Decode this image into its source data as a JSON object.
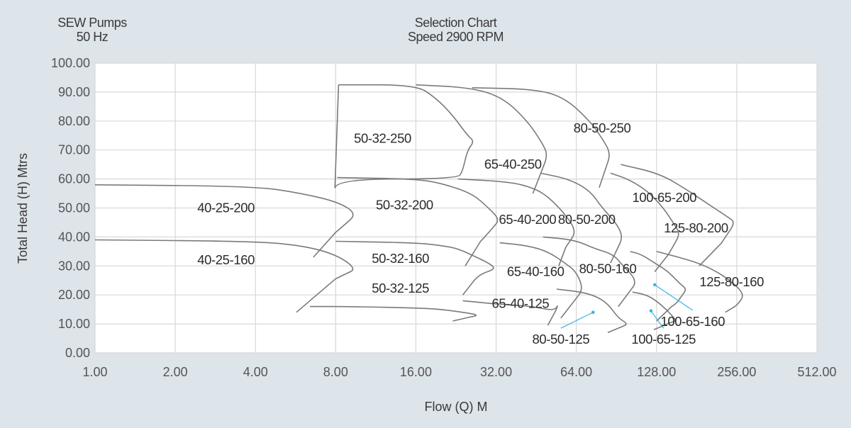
{
  "header": {
    "left_line1": "SEW Pumps",
    "left_line2": "50 Hz",
    "center_line1": "Selection Chart",
    "center_line2": "Speed 2900 RPM"
  },
  "chart_data": {
    "type": "line",
    "title": "Selection Chart",
    "subtitle": "Speed 2900 RPM",
    "xlabel": "Flow (Q)  M",
    "ylabel": "Total Head (H) Mtrs",
    "x_scale": "log2",
    "xlim": [
      1,
      512
    ],
    "ylim": [
      0,
      100
    ],
    "x_ticks": [
      "1.00",
      "2.00",
      "4.00",
      "8.00",
      "16.00",
      "32.00",
      "64.00",
      "128.00",
      "256.00",
      "512.00"
    ],
    "y_ticks": [
      "0.00",
      "10.00",
      "20.00",
      "30.00",
      "40.00",
      "50.00",
      "60.00",
      "70.00",
      "80.00",
      "90.00",
      "100.00"
    ],
    "grid": true,
    "colors": {
      "curve": "#7a7a7a",
      "grid": "#d8d8d8",
      "pointer": "#39b4e4",
      "plot_bg": "#ffffff"
    },
    "regions": [
      {
        "name": "50-32-250",
        "label_at": [
          12,
          74
        ],
        "outline": [
          [
            8.2,
            92.5
          ],
          [
            16,
            92.5
          ],
          [
            19,
            88
          ],
          [
            22,
            82
          ],
          [
            25,
            75
          ],
          [
            26.5,
            73
          ],
          [
            25,
            70
          ],
          [
            24,
            63
          ],
          [
            23,
            60
          ],
          [
            8.1,
            60
          ],
          [
            7.8,
            54
          ],
          [
            8.2,
            92.5
          ]
        ]
      },
      {
        "name": "65-40-250",
        "label_at": [
          37,
          65
        ],
        "outline": [
          [
            16,
            92.5
          ],
          [
            26,
            91.5
          ],
          [
            34,
            88
          ],
          [
            42,
            80
          ],
          [
            48,
            72
          ],
          [
            50,
            68
          ],
          [
            47,
            62
          ],
          [
            44,
            55
          ]
        ]
      },
      {
        "name": "80-50-250",
        "label_at": [
          80,
          77.5
        ],
        "outline": [
          [
            26,
            91.5
          ],
          [
            45,
            91
          ],
          [
            58,
            88
          ],
          [
            72,
            80
          ],
          [
            80,
            74
          ],
          [
            86,
            69
          ],
          [
            83,
            64
          ],
          [
            78,
            57
          ]
        ]
      },
      {
        "name": "40-25-200",
        "label_at": [
          3.1,
          50
        ],
        "outline": [
          [
            1,
            58
          ],
          [
            4,
            57.5
          ],
          [
            6,
            55
          ],
          [
            8.2,
            52
          ],
          [
            9.6,
            48
          ],
          [
            8.6,
            44
          ],
          [
            7.4,
            39
          ],
          [
            6.6,
            33
          ]
        ]
      },
      {
        "name": "50-32-200",
        "label_at": [
          14.5,
          51
        ],
        "outline": [
          [
            8.1,
            60.5
          ],
          [
            16,
            60
          ],
          [
            20,
            58.5
          ],
          [
            26,
            55
          ],
          [
            30,
            50
          ],
          [
            33,
            46
          ],
          [
            31,
            43
          ],
          [
            29,
            40
          ],
          [
            27,
            37
          ],
          [
            24.5,
            30
          ]
        ]
      },
      {
        "name": "65-40-200",
        "label_at": [
          42,
          46
        ],
        "outline": [
          [
            23,
            60
          ],
          [
            36,
            59
          ],
          [
            44,
            57
          ],
          [
            50,
            54
          ],
          [
            58,
            48
          ],
          [
            64,
            42
          ],
          [
            60,
            38
          ],
          [
            57,
            35
          ],
          [
            55,
            30
          ]
        ]
      },
      {
        "name": "80-50-200",
        "label_at": [
          70,
          46
        ],
        "outline": [
          [
            47,
            62
          ],
          [
            60,
            60
          ],
          [
            72,
            56
          ],
          [
            80,
            50
          ],
          [
            90,
            45
          ],
          [
            96,
            40
          ],
          [
            90,
            35
          ],
          [
            86,
            31
          ]
        ]
      },
      {
        "name": "100-65-200",
        "label_at": [
          137,
          53.5
        ],
        "outline": [
          [
            86,
            62
          ],
          [
            100,
            60
          ],
          [
            118,
            56
          ],
          [
            136,
            50
          ],
          [
            150,
            44
          ],
          [
            157,
            41
          ],
          [
            146,
            36
          ],
          [
            138,
            32
          ],
          [
            126,
            28
          ]
        ]
      },
      {
        "name": "125-80-200",
        "label_at": [
          180,
          43
        ],
        "outline": [
          [
            94,
            65
          ],
          [
            130,
            62
          ],
          [
            162,
            57
          ],
          [
            195,
            52
          ],
          [
            236,
            47
          ],
          [
            253,
            45
          ],
          [
            232,
            40
          ],
          [
            218,
            36
          ],
          [
            185,
            30
          ]
        ]
      },
      {
        "name": "40-25-160",
        "label_at": [
          3.1,
          32
        ],
        "outline": [
          [
            1,
            39
          ],
          [
            4,
            38.5
          ],
          [
            6,
            37
          ],
          [
            8,
            34
          ],
          [
            9.6,
            29
          ],
          [
            8.6,
            27
          ],
          [
            7.4,
            24
          ],
          [
            5.7,
            14
          ]
        ]
      },
      {
        "name": "50-32-160",
        "label_at": [
          14,
          32.5
        ],
        "outline": [
          [
            8,
            38.5
          ],
          [
            16,
            38
          ],
          [
            20,
            37
          ],
          [
            23,
            36
          ],
          [
            27,
            33
          ],
          [
            30,
            31
          ],
          [
            32,
            29
          ],
          [
            27.5,
            27
          ],
          [
            25,
            22
          ],
          [
            24,
            20
          ]
        ]
      },
      {
        "name": "65-40-160",
        "label_at": [
          45,
          28
        ],
        "outline": [
          [
            33,
            38
          ],
          [
            42,
            37
          ],
          [
            50,
            35
          ],
          [
            58,
            31
          ],
          [
            64,
            28
          ],
          [
            68,
            22
          ],
          [
            63,
            18
          ],
          [
            56,
            12
          ]
        ]
      },
      {
        "name": "80-50-160",
        "label_at": [
          84,
          29
        ],
        "outline": [
          [
            48,
            40
          ],
          [
            63,
            39
          ],
          [
            75,
            36
          ],
          [
            88,
            34
          ],
          [
            96,
            30
          ],
          [
            108,
            25
          ],
          [
            102,
            21
          ],
          [
            92,
            16
          ]
        ]
      },
      {
        "name": "100-65-160",
        "label_at": [
          175,
          10.8
        ],
        "pointer_to": [
          126,
          23.5
        ],
        "outline": [
          [
            102,
            35
          ],
          [
            112,
            34
          ],
          [
            126,
            31
          ],
          [
            142,
            28
          ],
          [
            156,
            24
          ],
          [
            166,
            22
          ],
          [
            160,
            20
          ],
          [
            152,
            17
          ],
          [
            140,
            15
          ],
          [
            128,
            11
          ]
        ]
      },
      {
        "name": "125-80-160",
        "label_at": [
          245,
          24.5
        ],
        "outline": [
          [
            128,
            35
          ],
          [
            155,
            33
          ],
          [
            184,
            31
          ],
          [
            216,
            28
          ],
          [
            250,
            24
          ],
          [
            273,
            20
          ],
          [
            260,
            17
          ],
          [
            244,
            15
          ],
          [
            232,
            14
          ]
        ]
      },
      {
        "name": "50-32-125",
        "label_at": [
          14,
          22.3
        ],
        "outline": [
          [
            6.4,
            16
          ],
          [
            9,
            16
          ],
          [
            16,
            15.5
          ],
          [
            20,
            15
          ],
          [
            24,
            14
          ],
          [
            28,
            13
          ],
          [
            24,
            12
          ],
          [
            22,
            11
          ]
        ]
      },
      {
        "name": "65-40-125",
        "label_at": [
          39.5,
          17
        ],
        "outline": [
          [
            24,
            18
          ],
          [
            31,
            17
          ],
          [
            37,
            16.5
          ],
          [
            44,
            16
          ],
          [
            53,
            14.5
          ],
          [
            55,
            17
          ],
          [
            52,
            12
          ],
          [
            50,
            9.5
          ]
        ]
      },
      {
        "name": "80-50-125",
        "label_at": [
          56,
          4.6
        ],
        "pointer_to": [
          74,
          14
        ],
        "outline": [
          [
            54,
            22
          ],
          [
            67,
            21
          ],
          [
            76,
            19.5
          ],
          [
            84,
            17
          ],
          [
            92,
            12
          ],
          [
            100,
            10
          ],
          [
            95,
            9
          ],
          [
            84,
            7
          ]
        ]
      },
      {
        "name": "100-65-125",
        "label_at": [
          136,
          4.6
        ],
        "pointer_to": [
          122,
          14.5
        ],
        "outline": [
          [
            104,
            21
          ],
          [
            118,
            20
          ],
          [
            132,
            17
          ],
          [
            146,
            13
          ],
          [
            152,
            11
          ],
          [
            144,
            10.5
          ],
          [
            134,
            9
          ],
          [
            125,
            8
          ]
        ]
      }
    ]
  }
}
